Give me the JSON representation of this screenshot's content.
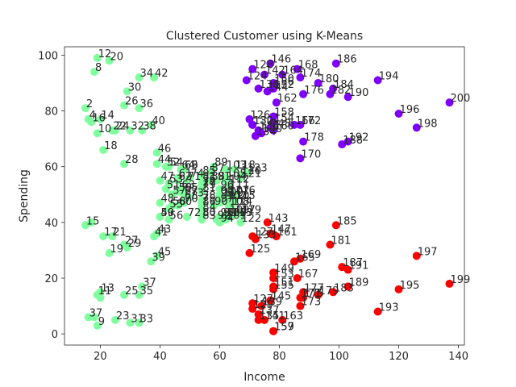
{
  "chart_data": {
    "type": "scatter",
    "title": "Clustered Customer using K-Means",
    "xlabel": "Income",
    "ylabel": "Spending",
    "xlim": [
      8,
      142
    ],
    "ylim": [
      -4,
      103
    ],
    "xticks": [
      20,
      40,
      60,
      80,
      100,
      120,
      140
    ],
    "yticks": [
      0,
      20,
      40,
      60,
      80,
      100
    ],
    "grid": false,
    "legend": "none",
    "cluster_colors": {
      "green": "#80ff9e",
      "purple": "#8000ff",
      "red": "#ff0000"
    },
    "series": [
      {
        "color": "#80ff9e",
        "points": [
          {
            "x": 15,
            "y": 39,
            "label": "15"
          },
          {
            "x": 15,
            "y": 81,
            "label": "2"
          },
          {
            "x": 16,
            "y": 6,
            "label": "37"
          },
          {
            "x": 16,
            "y": 77,
            "label": "4"
          },
          {
            "x": 17,
            "y": 40,
            "label": ""
          },
          {
            "x": 17,
            "y": 76,
            "label": "16"
          },
          {
            "x": 18,
            "y": 6,
            "label": ""
          },
          {
            "x": 18,
            "y": 94,
            "label": "8"
          },
          {
            "x": 19,
            "y": 3,
            "label": "9"
          },
          {
            "x": 19,
            "y": 72,
            "label": "10"
          },
          {
            "x": 19,
            "y": 14,
            "label": "11"
          },
          {
            "x": 19,
            "y": 99,
            "label": "12"
          },
          {
            "x": 20,
            "y": 15,
            "label": "13"
          },
          {
            "x": 20,
            "y": 77,
            "label": "14"
          },
          {
            "x": 20,
            "y": 13,
            "label": ""
          },
          {
            "x": 21,
            "y": 35,
            "label": "17"
          },
          {
            "x": 21,
            "y": 66,
            "label": "18"
          },
          {
            "x": 23,
            "y": 29,
            "label": "19"
          },
          {
            "x": 23,
            "y": 98,
            "label": "20"
          },
          {
            "x": 24,
            "y": 35,
            "label": "21"
          },
          {
            "x": 24,
            "y": 73,
            "label": "22"
          },
          {
            "x": 25,
            "y": 5,
            "label": "23"
          },
          {
            "x": 25,
            "y": 73,
            "label": "24"
          },
          {
            "x": 28,
            "y": 14,
            "label": "25"
          },
          {
            "x": 28,
            "y": 82,
            "label": "26"
          },
          {
            "x": 28,
            "y": 32,
            "label": "27"
          },
          {
            "x": 28,
            "y": 61,
            "label": "28"
          },
          {
            "x": 29,
            "y": 31,
            "label": "29"
          },
          {
            "x": 29,
            "y": 87,
            "label": "30"
          },
          {
            "x": 30,
            "y": 4,
            "label": "31"
          },
          {
            "x": 30,
            "y": 73,
            "label": "32"
          },
          {
            "x": 33,
            "y": 4,
            "label": "33"
          },
          {
            "x": 33,
            "y": 92,
            "label": "34"
          },
          {
            "x": 33,
            "y": 14,
            "label": "35"
          },
          {
            "x": 33,
            "y": 81,
            "label": "36"
          },
          {
            "x": 34,
            "y": 17,
            "label": "37"
          },
          {
            "x": 34,
            "y": 73,
            "label": "38"
          },
          {
            "x": 37,
            "y": 26,
            "label": "39"
          },
          {
            "x": 37,
            "y": 75,
            "label": "40"
          },
          {
            "x": 38,
            "y": 35,
            "label": "41"
          },
          {
            "x": 38,
            "y": 92,
            "label": "42"
          },
          {
            "x": 39,
            "y": 36,
            "label": "43"
          },
          {
            "x": 39,
            "y": 61,
            "label": "44"
          },
          {
            "x": 39,
            "y": 28,
            "label": "45"
          },
          {
            "x": 39,
            "y": 65,
            "label": "46"
          },
          {
            "x": 40,
            "y": 55,
            "label": "47"
          },
          {
            "x": 40,
            "y": 47,
            "label": "48"
          },
          {
            "x": 40,
            "y": 42,
            "label": "49"
          },
          {
            "x": 40,
            "y": 42,
            "label": "50"
          },
          {
            "x": 42,
            "y": 52,
            "label": "51"
          },
          {
            "x": 42,
            "y": 60,
            "label": "52"
          },
          {
            "x": 43,
            "y": 54,
            "label": "53"
          },
          {
            "x": 43,
            "y": 60,
            "label": "54"
          },
          {
            "x": 43,
            "y": 45,
            "label": "55"
          },
          {
            "x": 43,
            "y": 41,
            "label": "56"
          },
          {
            "x": 44,
            "y": 50,
            "label": "57"
          },
          {
            "x": 44,
            "y": 46,
            "label": "58"
          },
          {
            "x": 46,
            "y": 51,
            "label": "59"
          },
          {
            "x": 46,
            "y": 46,
            "label": "60"
          },
          {
            "x": 46,
            "y": 56,
            "label": "61"
          },
          {
            "x": 46,
            "y": 55,
            "label": "62"
          },
          {
            "x": 47,
            "y": 52,
            "label": "63"
          },
          {
            "x": 47,
            "y": 59,
            "label": "64"
          },
          {
            "x": 48,
            "y": 51,
            "label": "65"
          },
          {
            "x": 48,
            "y": 59,
            "label": "66"
          },
          {
            "x": 48,
            "y": 50,
            "label": "67"
          },
          {
            "x": 48,
            "y": 48,
            "label": "68"
          },
          {
            "x": 48,
            "y": 59,
            "label": "69"
          },
          {
            "x": 48,
            "y": 47,
            "label": "70"
          },
          {
            "x": 49,
            "y": 55,
            "label": "71"
          },
          {
            "x": 49,
            "y": 42,
            "label": "72"
          },
          {
            "x": 50,
            "y": 49,
            "label": "73"
          },
          {
            "x": 50,
            "y": 56,
            "label": "74"
          },
          {
            "x": 54,
            "y": 47,
            "label": "75"
          },
          {
            "x": 54,
            "y": 54,
            "label": "76"
          },
          {
            "x": 54,
            "y": 53,
            "label": "77"
          },
          {
            "x": 54,
            "y": 48,
            "label": "78"
          },
          {
            "x": 54,
            "y": 52,
            "label": "79"
          },
          {
            "x": 54,
            "y": 42,
            "label": "80"
          },
          {
            "x": 54,
            "y": 51,
            "label": "81"
          },
          {
            "x": 54,
            "y": 55,
            "label": "82"
          },
          {
            "x": 54,
            "y": 41,
            "label": "83"
          },
          {
            "x": 54,
            "y": 44,
            "label": "84"
          },
          {
            "x": 54,
            "y": 57,
            "label": "85"
          },
          {
            "x": 54,
            "y": 46,
            "label": "86"
          },
          {
            "x": 57,
            "y": 58,
            "label": "87"
          },
          {
            "x": 57,
            "y": 55,
            "label": "88"
          },
          {
            "x": 58,
            "y": 60,
            "label": "89"
          },
          {
            "x": 58,
            "y": 46,
            "label": "90"
          },
          {
            "x": 59,
            "y": 55,
            "label": "91"
          },
          {
            "x": 59,
            "y": 41,
            "label": "92"
          },
          {
            "x": 60,
            "y": 49,
            "label": "93"
          },
          {
            "x": 60,
            "y": 40,
            "label": "94"
          },
          {
            "x": 60,
            "y": 42,
            "label": "95"
          },
          {
            "x": 60,
            "y": 52,
            "label": "96"
          },
          {
            "x": 60,
            "y": 47,
            "label": "97"
          },
          {
            "x": 60,
            "y": 50,
            "label": "98"
          },
          {
            "x": 61,
            "y": 42,
            "label": "99"
          },
          {
            "x": 61,
            "y": 49,
            "label": "100"
          },
          {
            "x": 62,
            "y": 41,
            "label": "101"
          },
          {
            "x": 62,
            "y": 48,
            "label": "102"
          },
          {
            "x": 62,
            "y": 59,
            "label": "103"
          },
          {
            "x": 62,
            "y": 55,
            "label": "104"
          },
          {
            "x": 62,
            "y": 56,
            "label": "105"
          },
          {
            "x": 62,
            "y": 42,
            "label": "106"
          },
          {
            "x": 63,
            "y": 50,
            "label": "107"
          },
          {
            "x": 63,
            "y": 46,
            "label": "108"
          },
          {
            "x": 63,
            "y": 43,
            "label": "109"
          },
          {
            "x": 63,
            "y": 48,
            "label": "110"
          },
          {
            "x": 63,
            "y": 52,
            "label": "111"
          },
          {
            "x": 63,
            "y": 54,
            "label": "112"
          },
          {
            "x": 64,
            "y": 42,
            "label": "113"
          },
          {
            "x": 64,
            "y": 46,
            "label": "114"
          },
          {
            "x": 65,
            "y": 48,
            "label": "115"
          },
          {
            "x": 65,
            "y": 50,
            "label": "116"
          },
          {
            "x": 65,
            "y": 43,
            "label": "117"
          },
          {
            "x": 65,
            "y": 59,
            "label": "118"
          },
          {
            "x": 67,
            "y": 43,
            "label": "119"
          },
          {
            "x": 67,
            "y": 57,
            "label": "120"
          },
          {
            "x": 67,
            "y": 56,
            "label": "121"
          },
          {
            "x": 67,
            "y": 40,
            "label": "122"
          },
          {
            "x": 69,
            "y": 58,
            "label": "123"
          }
        ]
      },
      {
        "color": "#8000ff",
        "points": [
          {
            "x": 69,
            "y": 91,
            "label": "124"
          },
          {
            "x": 70,
            "y": 77,
            "label": "126"
          },
          {
            "x": 71,
            "y": 95,
            "label": "128"
          },
          {
            "x": 71,
            "y": 75,
            "label": "130"
          },
          {
            "x": 71,
            "y": 75,
            "label": "132"
          },
          {
            "x": 72,
            "y": 71,
            "label": "134"
          },
          {
            "x": 73,
            "y": 88,
            "label": "136"
          },
          {
            "x": 73,
            "y": 73,
            "label": "138"
          },
          {
            "x": 74,
            "y": 72,
            "label": "140"
          },
          {
            "x": 75,
            "y": 93,
            "label": "142"
          },
          {
            "x": 76,
            "y": 87,
            "label": "144"
          },
          {
            "x": 77,
            "y": 97,
            "label": "146"
          },
          {
            "x": 77,
            "y": 74,
            "label": "148"
          },
          {
            "x": 78,
            "y": 90,
            "label": "150"
          },
          {
            "x": 78,
            "y": 88,
            "label": "152"
          },
          {
            "x": 78,
            "y": 76,
            "label": "154"
          },
          {
            "x": 78,
            "y": 89,
            "label": "156"
          },
          {
            "x": 78,
            "y": 78,
            "label": "158"
          },
          {
            "x": 78,
            "y": 73,
            "label": "160"
          },
          {
            "x": 79,
            "y": 83,
            "label": "162"
          },
          {
            "x": 81,
            "y": 93,
            "label": "164"
          },
          {
            "x": 85,
            "y": 75,
            "label": "166"
          },
          {
            "x": 86,
            "y": 95,
            "label": "168"
          },
          {
            "x": 87,
            "y": 63,
            "label": "170"
          },
          {
            "x": 87,
            "y": 75,
            "label": "172"
          },
          {
            "x": 87,
            "y": 92,
            "label": "174"
          },
          {
            "x": 88,
            "y": 86,
            "label": "176"
          },
          {
            "x": 88,
            "y": 69,
            "label": "178"
          },
          {
            "x": 93,
            "y": 90,
            "label": "180"
          },
          {
            "x": 97,
            "y": 86,
            "label": "182"
          },
          {
            "x": 98,
            "y": 88,
            "label": "184"
          },
          {
            "x": 99,
            "y": 97,
            "label": "186"
          },
          {
            "x": 101,
            "y": 68,
            "label": "188"
          },
          {
            "x": 103,
            "y": 85,
            "label": "190"
          },
          {
            "x": 103,
            "y": 69,
            "label": "192"
          },
          {
            "x": 113,
            "y": 91,
            "label": "194"
          },
          {
            "x": 120,
            "y": 79,
            "label": "196"
          },
          {
            "x": 126,
            "y": 74,
            "label": "198"
          },
          {
            "x": 137,
            "y": 83,
            "label": "200"
          }
        ]
      },
      {
        "color": "#ff0000",
        "points": [
          {
            "x": 70,
            "y": 29,
            "label": "125"
          },
          {
            "x": 71,
            "y": 11,
            "label": "127"
          },
          {
            "x": 71,
            "y": 9,
            "label": "129"
          },
          {
            "x": 71,
            "y": 35,
            "label": "127"
          },
          {
            "x": 72,
            "y": 34,
            "label": "133"
          },
          {
            "x": 73,
            "y": 5,
            "label": "135"
          },
          {
            "x": 73,
            "y": 7,
            "label": "137"
          },
          {
            "x": 74,
            "y": 10,
            "label": "139"
          },
          {
            "x": 75,
            "y": 5,
            "label": "141"
          },
          {
            "x": 76,
            "y": 40,
            "label": "143"
          },
          {
            "x": 77,
            "y": 12,
            "label": "145"
          },
          {
            "x": 77,
            "y": 36,
            "label": "147"
          },
          {
            "x": 78,
            "y": 22,
            "label": "149"
          },
          {
            "x": 78,
            "y": 17,
            "label": "151"
          },
          {
            "x": 78,
            "y": 20,
            "label": "153"
          },
          {
            "x": 78,
            "y": 16,
            "label": "155"
          },
          {
            "x": 78,
            "y": 1,
            "label": "157"
          },
          {
            "x": 78,
            "y": 1,
            "label": "159"
          },
          {
            "x": 79,
            "y": 35,
            "label": "161"
          },
          {
            "x": 81,
            "y": 5,
            "label": "163"
          },
          {
            "x": 85,
            "y": 26,
            "label": "165"
          },
          {
            "x": 86,
            "y": 20,
            "label": "167"
          },
          {
            "x": 87,
            "y": 27,
            "label": "169"
          },
          {
            "x": 87,
            "y": 13,
            "label": "171"
          },
          {
            "x": 87,
            "y": 10,
            "label": "173"
          },
          {
            "x": 88,
            "y": 13,
            "label": "175"
          },
          {
            "x": 88,
            "y": 15,
            "label": "177"
          },
          {
            "x": 93,
            "y": 14,
            "label": "179"
          },
          {
            "x": 97,
            "y": 32,
            "label": "181"
          },
          {
            "x": 98,
            "y": 15,
            "label": "183"
          },
          {
            "x": 99,
            "y": 39,
            "label": "185"
          },
          {
            "x": 101,
            "y": 24,
            "label": "187"
          },
          {
            "x": 103,
            "y": 17,
            "label": "189"
          },
          {
            "x": 103,
            "y": 23,
            "label": "191"
          },
          {
            "x": 113,
            "y": 8,
            "label": "193"
          },
          {
            "x": 120,
            "y": 16,
            "label": "195"
          },
          {
            "x": 126,
            "y": 28,
            "label": "197"
          },
          {
            "x": 137,
            "y": 18,
            "label": "199"
          }
        ]
      }
    ]
  }
}
